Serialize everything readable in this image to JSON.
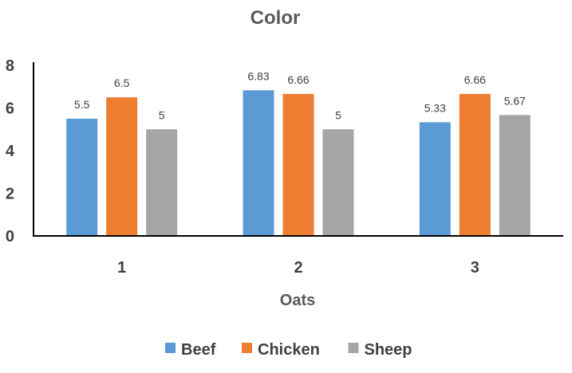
{
  "chart_data": {
    "type": "bar",
    "title": "Color",
    "xlabel": "Oats",
    "ylabel": "",
    "ylim": [
      0,
      8
    ],
    "yticks": [
      0,
      2,
      4,
      6,
      8
    ],
    "grid": false,
    "legend_position": "bottom",
    "categories": [
      "1",
      "2",
      "3"
    ],
    "series": [
      {
        "name": "Beef",
        "color": "#5b9bd5",
        "values": [
          5.5,
          6.83,
          5.33
        ],
        "labels": [
          "5.5",
          "6.83",
          "5.33"
        ]
      },
      {
        "name": "Chicken",
        "color": "#ed7d31",
        "values": [
          6.5,
          6.66,
          6.66
        ],
        "labels": [
          "6.5",
          "6.66",
          "6.66"
        ]
      },
      {
        "name": "Sheep",
        "color": "#a5a5a5",
        "values": [
          5,
          5,
          5.67
        ],
        "labels": [
          "5",
          "5",
          "5.67"
        ]
      }
    ]
  }
}
